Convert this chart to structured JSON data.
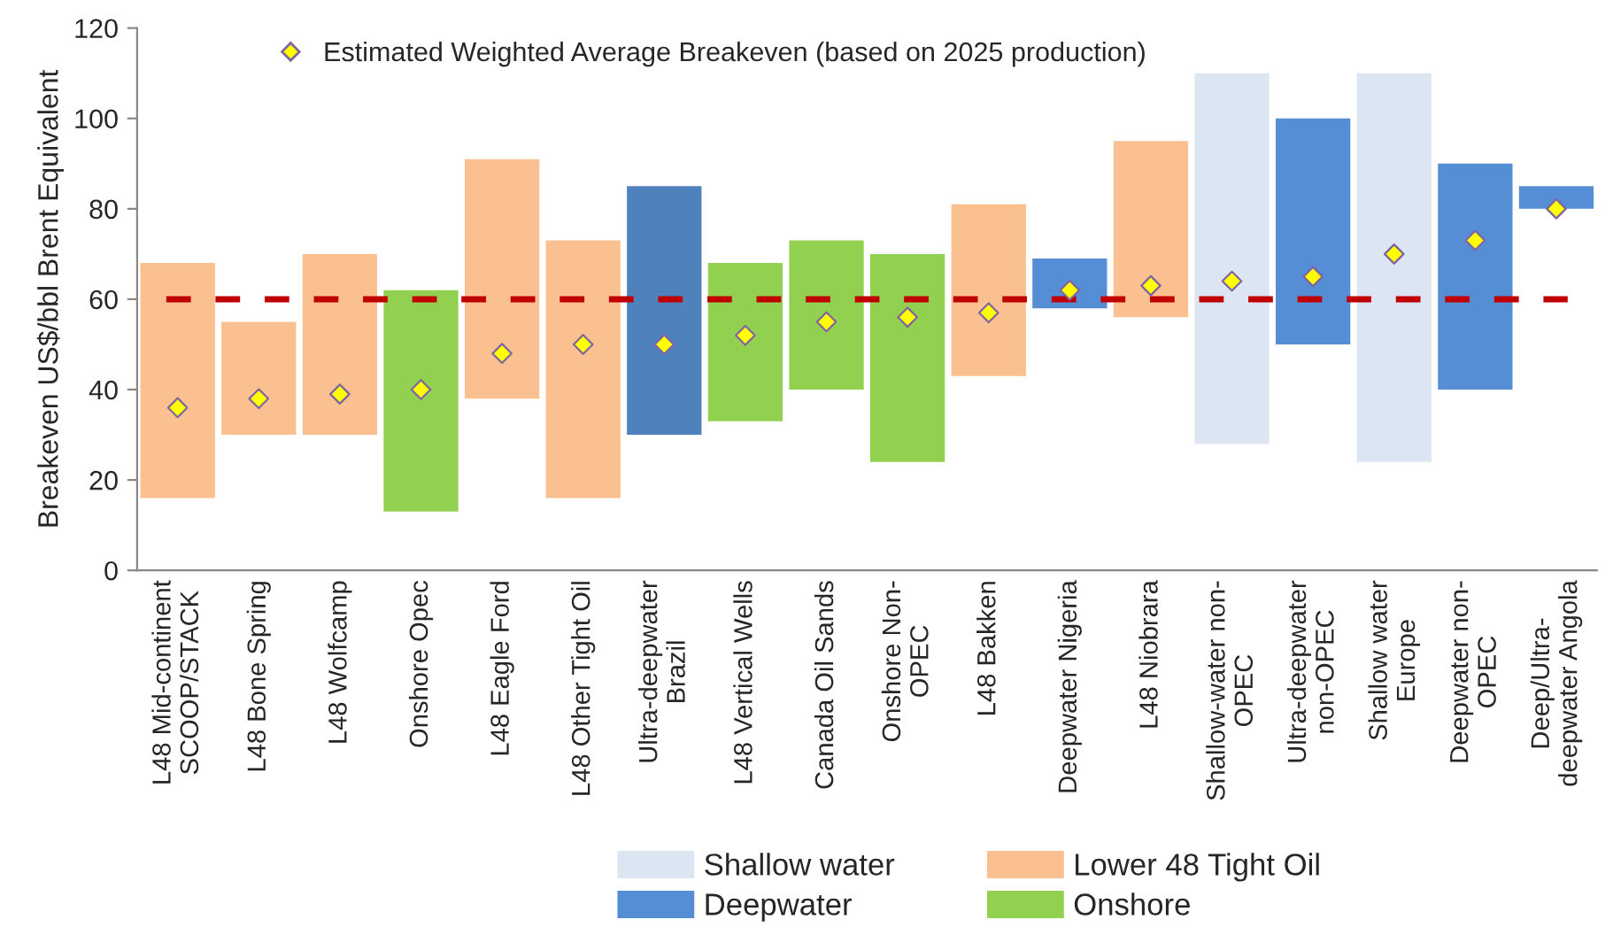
{
  "chart_data": {
    "type": "bar",
    "ylabel": "Breakeven US$/bbl Brent Equivalent",
    "categories": [
      "L48 Mid-continent\nSCOOP/STACK",
      "L48 Bone Spring",
      "L48 Wolfcamp",
      "Onshore Opec",
      "L48 Eagle Ford",
      "L48 Other Tight Oil",
      "Ultra-deepwater\nBrazil",
      "L48 Vertical Wells",
      "Canada Oil Sands",
      "Onshore Non-\nOPEC",
      "L48 Bakken",
      "Deepwater Nigeria",
      "L48 Niobrara",
      "Shallow-water non-\nOPEC",
      "Ultra-deepwater\nnon-OPEC",
      "Shallow water\nEurope",
      "Deepwater non-\nOPEC",
      "Deep/Ultra-\ndeepwater Angola"
    ],
    "series": [
      {
        "name": "Shallow water",
        "color": "#dce6f2",
        "base": [
          null,
          null,
          null,
          null,
          null,
          null,
          null,
          null,
          null,
          null,
          null,
          null,
          null,
          28,
          null,
          24,
          null,
          null
        ],
        "values": [
          null,
          null,
          null,
          null,
          null,
          null,
          null,
          null,
          null,
          null,
          null,
          null,
          null,
          82,
          null,
          86,
          null,
          null
        ]
      },
      {
        "name": "Deepwater",
        "color": "#558ed5",
        "colors": [
          null,
          null,
          null,
          null,
          null,
          null,
          "#4f81bd",
          null,
          null,
          null,
          null,
          "#558ed5",
          null,
          null,
          "#558ed5",
          null,
          "#558ed5",
          "#558ed5"
        ],
        "base": [
          null,
          null,
          null,
          null,
          null,
          null,
          30,
          null,
          null,
          null,
          null,
          58,
          null,
          null,
          50,
          null,
          40,
          80
        ],
        "values": [
          null,
          null,
          null,
          null,
          null,
          null,
          55,
          null,
          null,
          null,
          null,
          11,
          null,
          null,
          50,
          null,
          50,
          5
        ]
      },
      {
        "name": "Lower 48 Tight Oil",
        "color": "#fac090",
        "base": [
          16,
          30,
          30,
          null,
          38,
          16,
          null,
          null,
          null,
          null,
          43,
          null,
          56,
          null,
          null,
          null,
          null,
          null
        ],
        "values": [
          52,
          25,
          40,
          null,
          53,
          57,
          null,
          null,
          null,
          null,
          38,
          null,
          39,
          null,
          null,
          null,
          null,
          null
        ]
      },
      {
        "name": "Onshore",
        "color": "#92d050",
        "base": [
          null,
          null,
          null,
          13,
          null,
          null,
          null,
          33,
          40,
          24,
          null,
          null,
          null,
          null,
          null,
          null,
          null,
          null
        ],
        "values": [
          null,
          null,
          null,
          49,
          null,
          null,
          null,
          35,
          33,
          46,
          null,
          null,
          null,
          null,
          null,
          null,
          null,
          null
        ]
      },
      {
        "name": "Estimated Weighted Average Breakeven (based on 2025 production)",
        "type": "scatter",
        "marker": "diamond",
        "color": "#ffff00",
        "x": [
          "L48 Mid-continent\nSCOOP/STACK",
          "L48 Bone Spring",
          "L48 Wolfcamp",
          "Onshore Opec",
          "L48 Eagle Ford",
          "L48 Other Tight Oil",
          "Ultra-deepwater\nBrazil",
          "L48 Vertical Wells",
          "Canada Oil Sands",
          "Onshore Non-\nOPEC",
          "L48 Bakken",
          "Deepwater Nigeria",
          "L48 Niobrara",
          "Shallow-water non-\nOPEC",
          "Ultra-deepwater\nnon-OPEC",
          "Shallow water\nEurope",
          "Deepwater non-\nOPEC",
          "Deep/Ultra-\ndeepwater Angola"
        ],
        "values": [
          36,
          38,
          39,
          40,
          48,
          50,
          50,
          52,
          55,
          56,
          57,
          62,
          63,
          64,
          65,
          70,
          73,
          80
        ]
      }
    ],
    "ref_lines": [
      {
        "axis": "y",
        "value": 60,
        "color": "#c00000",
        "line_style": "dashed"
      }
    ],
    "ylim": [
      0,
      120
    ],
    "yticks": [
      0,
      20,
      40,
      60,
      80,
      100,
      120
    ],
    "grid": false,
    "legend": "bottom"
  }
}
